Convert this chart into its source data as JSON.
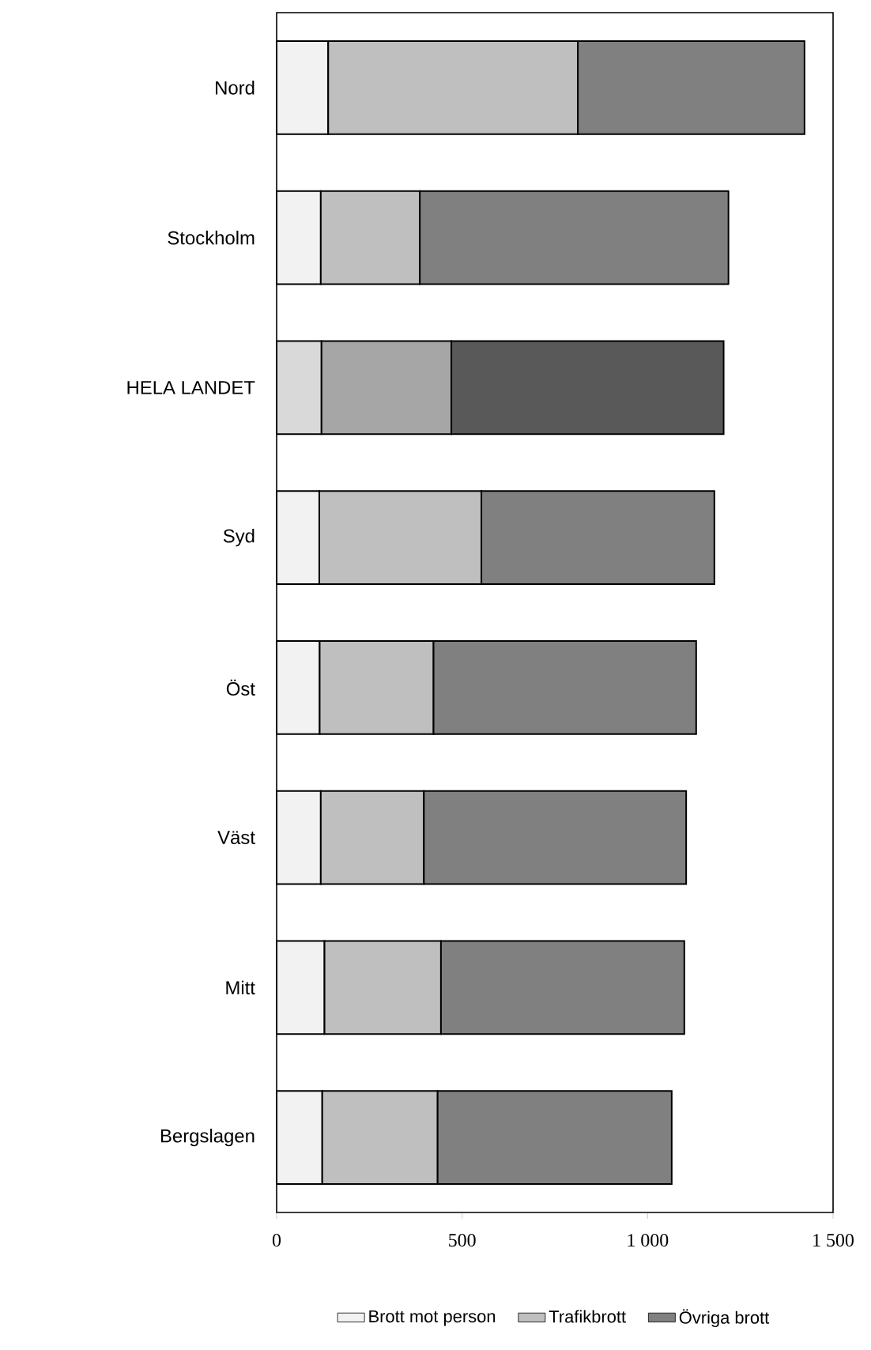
{
  "chart_data": {
    "type": "bar",
    "orientation": "horizontal",
    "stacked": true,
    "categories": [
      "Nord",
      "Stockholm",
      "HELA LANDET",
      "Syd",
      "Öst",
      "Väst",
      "Mitt",
      "Bergslagen"
    ],
    "series": [
      {
        "name": "Brott mot person",
        "color": "#f2f2f2",
        "colors": [
          "#f2f2f2",
          "#f2f2f2",
          "#d9d9d9",
          "#f2f2f2",
          "#f2f2f2",
          "#f2f2f2",
          "#f2f2f2",
          "#f2f2f2"
        ],
        "values": [
          139,
          119,
          121,
          115,
          116,
          119,
          129,
          123
        ]
      },
      {
        "name": "Trafikbrott",
        "color": "#bfbfbf",
        "colors": [
          "#bfbfbf",
          "#bfbfbf",
          "#a6a6a6",
          "#bfbfbf",
          "#bfbfbf",
          "#bfbfbf",
          "#bfbfbf",
          "#bfbfbf"
        ],
        "values": [
          673,
          267,
          350,
          437,
          307,
          278,
          314,
          311
        ]
      },
      {
        "name": "Övriga brott",
        "color": "#808080",
        "colors": [
          "#808080",
          "#808080",
          "#595959",
          "#808080",
          "#808080",
          "#808080",
          "#808080",
          "#808080"
        ],
        "values": [
          611,
          832,
          734,
          628,
          708,
          707,
          656,
          631
        ]
      }
    ],
    "xlim": [
      0,
      1500
    ],
    "xticks": [
      0,
      500,
      {
        "value": 1000,
        "label": "1 000"
      },
      {
        "value": 1500,
        "label": "1 500"
      }
    ],
    "legend": "bottom",
    "grid": false
  }
}
